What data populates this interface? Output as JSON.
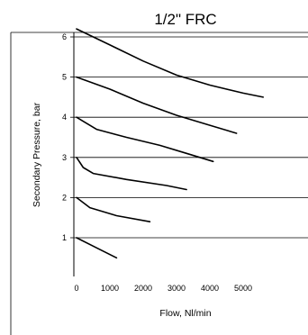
{
  "chart_data": {
    "type": "line",
    "title": "1/2\" FRC",
    "xlabel": "Flow, Nl/min",
    "ylabel": "Secondary Pressure, bar",
    "xlim": [
      0,
      6400
    ],
    "ylim": [
      0,
      6.2
    ],
    "x_ticks": [
      0,
      1000,
      2000,
      3000,
      4000,
      5000
    ],
    "y_ticks": [
      1,
      2,
      3,
      4,
      5,
      6
    ],
    "grid": "horizontal",
    "series": [
      {
        "x": [
          0,
          600,
          1200
        ],
        "y": [
          1.0,
          0.75,
          0.5
        ]
      },
      {
        "x": [
          0,
          400,
          1200,
          2200
        ],
        "y": [
          2.0,
          1.75,
          1.55,
          1.4
        ]
      },
      {
        "x": [
          0,
          200,
          500,
          1500,
          2700,
          3300
        ],
        "y": [
          3.0,
          2.75,
          2.6,
          2.45,
          2.3,
          2.2
        ]
      },
      {
        "x": [
          0,
          200,
          600,
          1500,
          2500,
          3300,
          4100
        ],
        "y": [
          4.0,
          3.9,
          3.7,
          3.5,
          3.3,
          3.1,
          2.9
        ]
      },
      {
        "x": [
          0,
          1000,
          2000,
          3000,
          4000,
          4800
        ],
        "y": [
          5.0,
          4.7,
          4.35,
          4.05,
          3.8,
          3.6
        ]
      },
      {
        "x": [
          0,
          1000,
          2000,
          3000,
          4000,
          5000,
          5600
        ],
        "y": [
          6.2,
          5.8,
          5.4,
          5.05,
          4.8,
          4.6,
          4.5
        ]
      }
    ]
  }
}
